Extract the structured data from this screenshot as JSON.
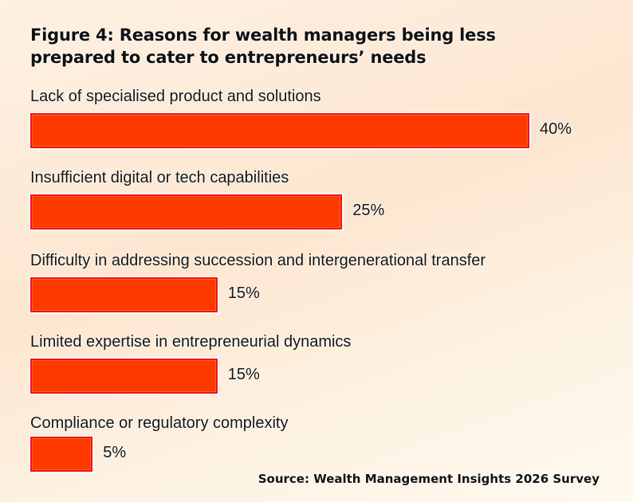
{
  "chart_data": {
    "type": "bar",
    "orientation": "horizontal",
    "title": "Figure 4: Reasons for wealth managers being less prepared to cater to entrepreneurs’ needs",
    "title_lines": [
      "Figure 4: Reasons for wealth managers being less",
      "prepared to cater to entrepreneurs’ needs"
    ],
    "categories": [
      "Lack of specialised product and solutions",
      "Insufficient digital or tech capabilities",
      "Difficulty in addressing succession and intergenerational transfer",
      "Limited expertise in entrepreneurial dynamics",
      "Compliance or regulatory complexity"
    ],
    "values": [
      40,
      25,
      15,
      15,
      5
    ],
    "value_labels": [
      "40%",
      "25%",
      "15%",
      "15%",
      "5%"
    ],
    "unit": "%",
    "xlabel": "",
    "ylabel": "",
    "xlim": [
      0,
      40
    ],
    "grid": false,
    "legend": "none",
    "source": "Source: Wealth Management Insights 2026 Survey",
    "colors": {
      "bar_fill": "#ff3a00",
      "bar_border": "#f0102a",
      "text": "#151515"
    }
  }
}
